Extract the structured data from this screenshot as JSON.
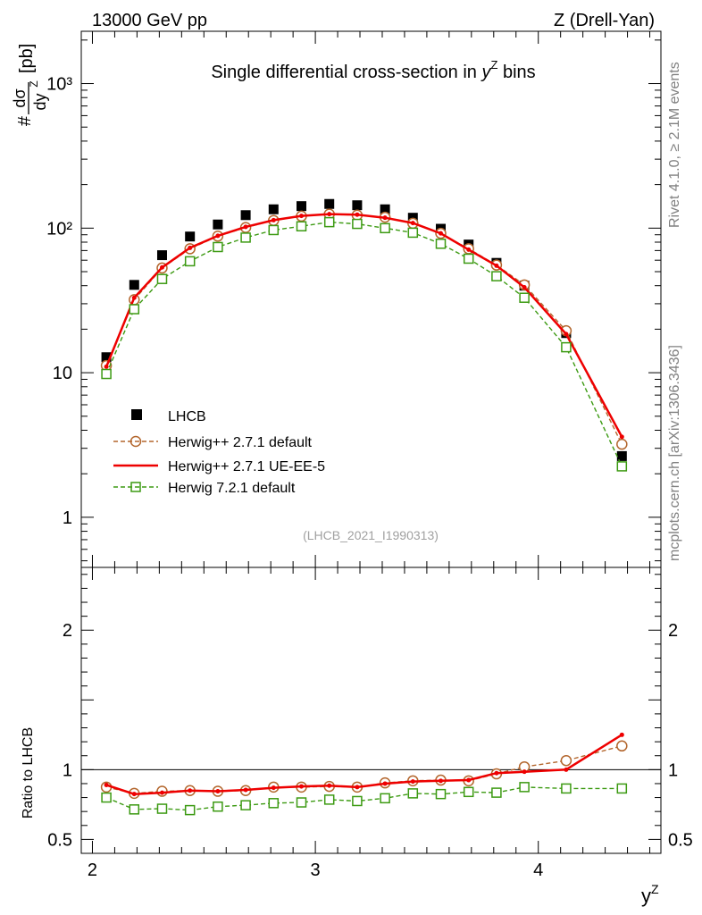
{
  "header": {
    "left": "13000 GeV pp",
    "right": "Z (Drell-Yan)"
  },
  "side_labels": {
    "rivet": "Rivet 4.1.0, ≥ 2.1M events",
    "mcplots": "mcplots.cern.ch [arXiv:1306.3436]"
  },
  "watermark": "(LHCB_2021_I1990313)",
  "colors": {
    "lhcb": "#000000",
    "herwigpp_default": "#b3662d",
    "herwigpp_ueee5": "#ee0000",
    "herwig7": "#3c9a12",
    "reference_line": "#000000"
  },
  "chart_data": [
    {
      "type": "scatter",
      "title": "Single differential cross-section in y^Z bins",
      "title_parts": {
        "main": "Single differential cross-section in ",
        "symbol": "y",
        "sup": "Z",
        "tail": " bins"
      },
      "ylabel_parts": {
        "hash": "#",
        "num": "dσ",
        "den": "dy",
        "den_sup": "Z",
        "unit": "[pb]"
      },
      "yscale": "log",
      "xlim": [
        1.95,
        4.55
      ],
      "ylim": [
        0.45,
        2300
      ],
      "yticks": [
        1,
        10,
        100,
        1000
      ],
      "ytick_labels": [
        "1",
        "10",
        "10²",
        "10³"
      ],
      "legend_placement": "lower-left",
      "x": [
        2.0625,
        2.1875,
        2.3125,
        2.4375,
        2.5625,
        2.6875,
        2.8125,
        2.9375,
        3.0625,
        3.1875,
        3.3125,
        3.4375,
        3.5625,
        3.6875,
        3.8125,
        3.9375,
        4.125,
        4.375
      ],
      "series": [
        {
          "name": "LHCB",
          "style": "data",
          "values": [
            12.8,
            40.5,
            65.0,
            87.5,
            106.0,
            123.0,
            135.0,
            142.0,
            147.0,
            144.0,
            135.0,
            118.0,
            99.0,
            77.0,
            57.5,
            40.0,
            18.8,
            2.65
          ]
        },
        {
          "name": "Herwig++ 2.7.1 default",
          "style": "circle",
          "values": [
            11.2,
            32.0,
            53.0,
            72.0,
            88.0,
            101.0,
            113.0,
            121.0,
            125.0,
            123.0,
            119.0,
            108.0,
            92.0,
            72.0,
            55.5,
            40.5,
            19.5,
            3.2
          ]
        },
        {
          "name": "Herwig++ 2.7.1 UE-EE-5",
          "style": "line",
          "values": [
            11.0,
            33.0,
            53.5,
            73.0,
            88.5,
            102.0,
            113.5,
            121.5,
            125.0,
            124.0,
            118.0,
            108.5,
            92.0,
            71.0,
            55.0,
            39.0,
            18.5,
            3.6
          ]
        },
        {
          "name": "Herwig 7.2.1 default",
          "style": "square",
          "values": [
            9.8,
            27.5,
            44.5,
            59.0,
            74.0,
            86.0,
            97.0,
            103.0,
            110.0,
            107.0,
            100.0,
            93.0,
            78.0,
            61.5,
            46.5,
            33.0,
            15.0,
            2.25
          ]
        }
      ]
    },
    {
      "type": "line",
      "ylabel": "Ratio to LHCB",
      "xlabel_parts": {
        "main": "y",
        "sup": "Z"
      },
      "xlim": [
        1.95,
        4.55
      ],
      "ylim": [
        0.4,
        2.45
      ],
      "xticks": [
        2,
        3,
        4
      ],
      "xtick_labels": [
        "2",
        "3",
        "4"
      ],
      "yticks": [
        0.5,
        1,
        2
      ],
      "ytick_labels": [
        "0.5",
        "1",
        "2"
      ],
      "x": [
        2.0625,
        2.1875,
        2.3125,
        2.4375,
        2.5625,
        2.6875,
        2.8125,
        2.9375,
        3.0625,
        3.1875,
        3.3125,
        3.4375,
        3.5625,
        3.6875,
        3.8125,
        3.9375,
        4.125,
        4.375
      ],
      "series": [
        {
          "name": "Herwig++ 2.7.1 default",
          "style": "circle",
          "values": [
            0.875,
            0.83,
            0.845,
            0.85,
            0.845,
            0.85,
            0.875,
            0.875,
            0.88,
            0.875,
            0.905,
            0.92,
            0.925,
            0.92,
            0.97,
            1.02,
            1.065,
            1.17
          ]
        },
        {
          "name": "Herwig++ 2.7.1 UE-EE-5",
          "style": "line",
          "values": [
            0.89,
            0.825,
            0.835,
            0.85,
            0.845,
            0.855,
            0.87,
            0.88,
            0.885,
            0.875,
            0.9,
            0.915,
            0.92,
            0.925,
            0.975,
            0.985,
            1.0,
            1.25
          ]
        },
        {
          "name": "Herwig 7.2.1 default",
          "style": "square",
          "values": [
            0.8,
            0.715,
            0.72,
            0.71,
            0.735,
            0.745,
            0.76,
            0.765,
            0.785,
            0.775,
            0.795,
            0.83,
            0.825,
            0.84,
            0.835,
            0.875,
            0.865,
            0.865
          ]
        }
      ]
    }
  ]
}
